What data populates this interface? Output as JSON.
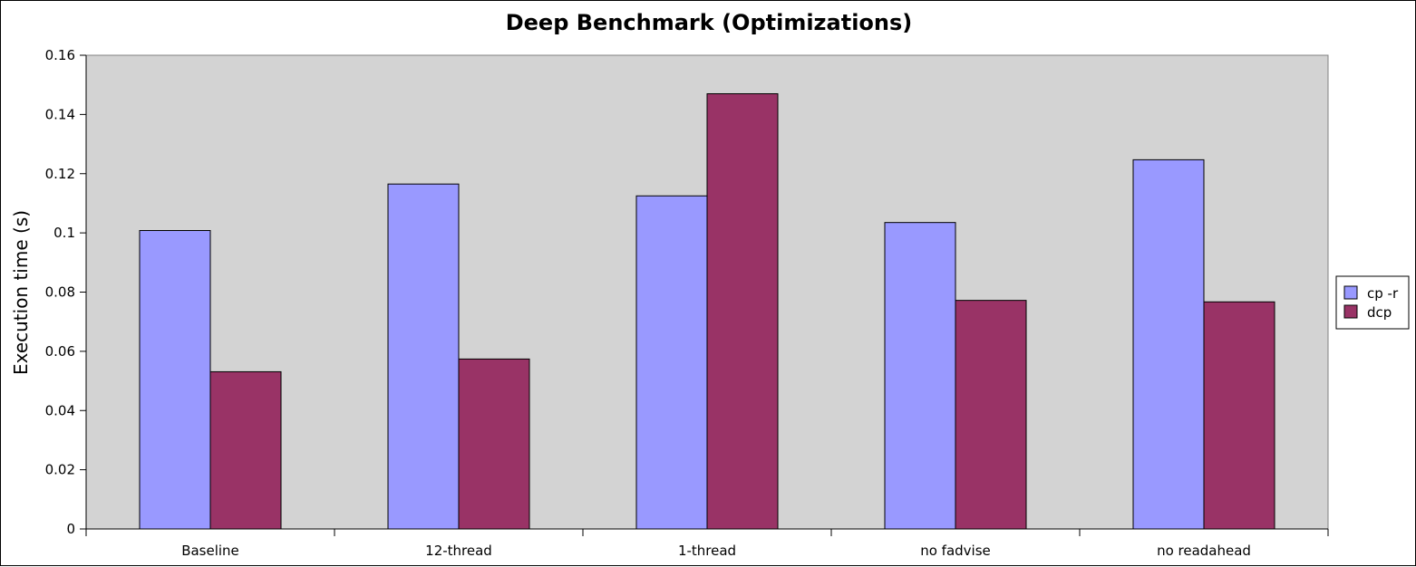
{
  "chart_data": {
    "type": "bar",
    "title": "Deep Benchmark (Optimizations)",
    "xlabel": "",
    "ylabel": "Execution time (s)",
    "categories": [
      "Baseline",
      "12-thread",
      "1-thread",
      "no fadvise",
      "no readahead"
    ],
    "series": [
      {
        "name": "cp -r",
        "color": "#9999ff",
        "values": [
          0.1008,
          0.1165,
          0.1125,
          0.1035,
          0.1247
        ]
      },
      {
        "name": "dcp",
        "color": "#993366",
        "values": [
          0.0531,
          0.0574,
          0.147,
          0.0772,
          0.0767
        ]
      }
    ],
    "ylim": [
      0,
      0.16
    ],
    "yticks": [
      "0",
      "0.02",
      "0.04",
      "0.06",
      "0.08",
      "0.1",
      "0.12",
      "0.14",
      "0.16"
    ],
    "grid": false,
    "plot_background": "#d3d3d3",
    "legend_position": "right"
  }
}
